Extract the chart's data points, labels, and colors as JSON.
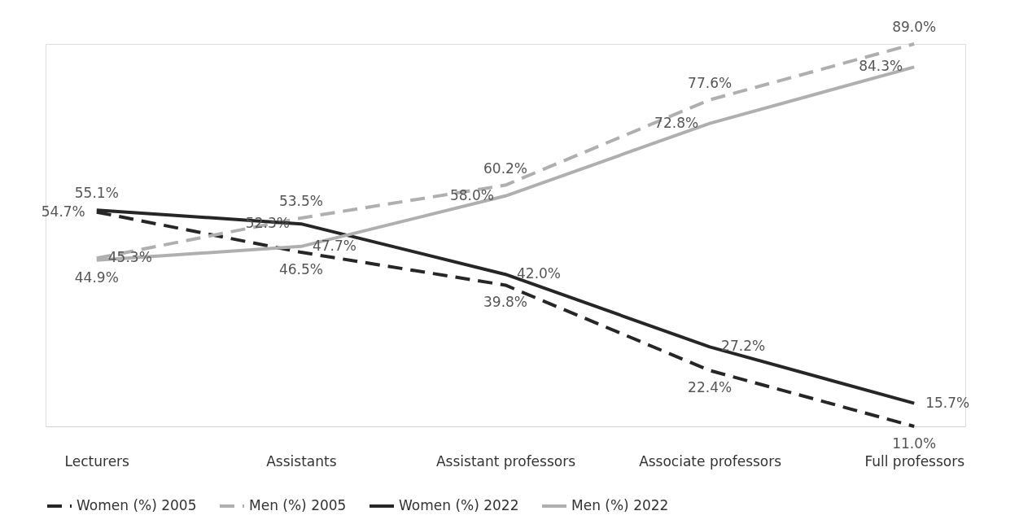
{
  "chart_data": {
    "type": "line",
    "categories": [
      "Lecturers",
      "Assistants",
      "Assistant professors",
      "Associate professors",
      "Full professors"
    ],
    "series": [
      {
        "name": "Women (%) 2005",
        "color": "#262626",
        "line_style": "dashed",
        "values": [
          54.7,
          46.5,
          39.8,
          22.4,
          11.0
        ],
        "value_labels": [
          "54.7%",
          "46.5%",
          "39.8%",
          "22.4%",
          "11.0%"
        ]
      },
      {
        "name": "Men (%) 2005",
        "color": "#afafaf",
        "line_style": "dashed",
        "values": [
          45.3,
          53.5,
          60.2,
          77.6,
          89.0
        ],
        "value_labels": [
          "45.3%",
          "53.5%",
          "60.2%",
          "77.6%",
          "89.0%"
        ]
      },
      {
        "name": "Women (%) 2022",
        "color": "#262626",
        "line_style": "solid",
        "values": [
          55.1,
          52.3,
          42.0,
          27.2,
          15.7
        ],
        "value_labels": [
          "55.1%",
          "52.3%",
          "42.0%",
          "27.2%",
          "15.7%"
        ]
      },
      {
        "name": "Men (%) 2022",
        "color": "#afafaf",
        "line_style": "solid",
        "values": [
          44.9,
          47.7,
          58.0,
          72.8,
          84.3
        ],
        "value_labels": [
          "44.9%",
          "47.7%",
          "58.0%",
          "72.8%",
          "84.3%"
        ]
      }
    ],
    "legend": "bottom",
    "marker": "none"
  }
}
